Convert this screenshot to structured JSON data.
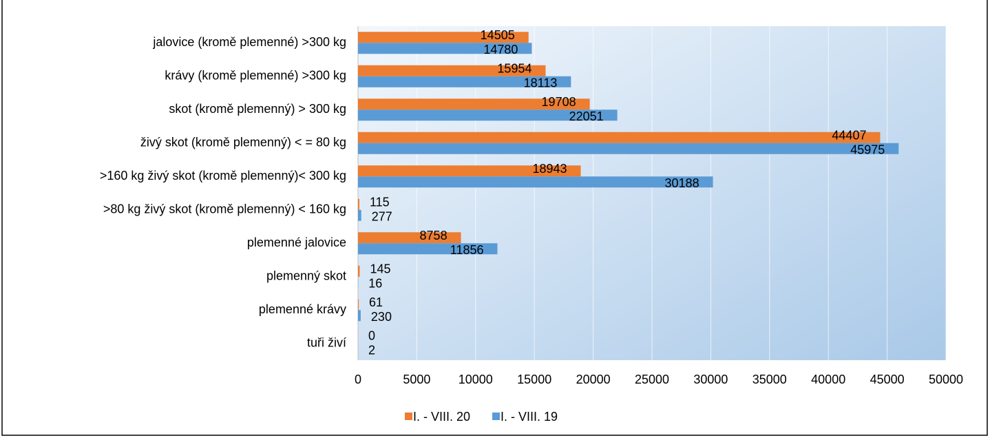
{
  "chart_data": {
    "type": "hbar",
    "categories": [
      "jalovice (kromě plemenné) >300 kg",
      "krávy (kromě plemenné) >300 kg",
      "skot (kromě plemenný) > 300 kg",
      "živý skot (kromě plemenný) < = 80 kg",
      ">160 kg živý skot (kromě plemenný)< 300 kg",
      ">80 kg živý skot (kromě plemenný) < 160 kg",
      "plemenné jalovice",
      "plemenný skot",
      "plemenné krávy",
      "tuři živí"
    ],
    "series": [
      {
        "name": "I. - VIII. 20",
        "color": "#ed7d31",
        "values": [
          14505,
          15954,
          19708,
          44407,
          18943,
          115,
          8758,
          145,
          61,
          0
        ]
      },
      {
        "name": "I. - VIII. 19",
        "color": "#5b9bd5",
        "values": [
          14780,
          18113,
          22051,
          45975,
          30188,
          277,
          11856,
          16,
          230,
          2
        ]
      }
    ],
    "xlim": [
      0,
      50000
    ],
    "xticks": [
      0,
      5000,
      10000,
      15000,
      20000,
      25000,
      30000,
      35000,
      40000,
      45000,
      50000
    ],
    "grid": true,
    "legend": "bottom"
  }
}
